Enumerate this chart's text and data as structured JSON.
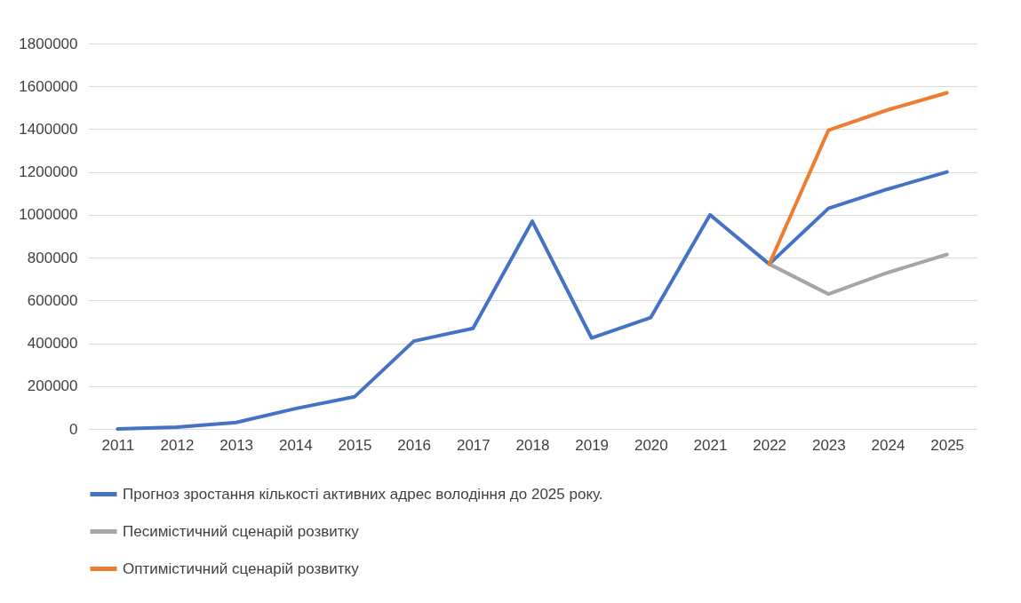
{
  "chart_data": {
    "type": "line",
    "categories": [
      "2011",
      "2012",
      "2013",
      "2014",
      "2015",
      "2016",
      "2017",
      "2018",
      "2019",
      "2020",
      "2021",
      "2022",
      "2023",
      "2024",
      "2025"
    ],
    "series": [
      {
        "name": "Прогноз зростання кількості активних адрес володіння до 2025 року.",
        "color": "#4472c4",
        "values": [
          0,
          8000,
          30000,
          95000,
          150000,
          410000,
          470000,
          970000,
          425000,
          520000,
          1000000,
          770000,
          1030000,
          1120000,
          1200000
        ]
      },
      {
        "name": "Песимістичний сценарій розвитку",
        "color": "#a5a5a5",
        "values": [
          null,
          null,
          null,
          null,
          null,
          null,
          null,
          null,
          null,
          null,
          null,
          770000,
          630000,
          730000,
          815000
        ]
      },
      {
        "name": "Оптимістичний сценарій розвитку",
        "color": "#ed7d31",
        "values": [
          null,
          null,
          null,
          null,
          null,
          null,
          null,
          null,
          null,
          null,
          null,
          770000,
          1395000,
          1490000,
          1570000
        ]
      }
    ],
    "ylim": [
      0,
      1800000
    ],
    "yticks": [
      0,
      200000,
      400000,
      600000,
      800000,
      1000000,
      1200000,
      1400000,
      1600000,
      1800000
    ],
    "grid": "y",
    "legend": "bottom",
    "line_style": "solid"
  }
}
